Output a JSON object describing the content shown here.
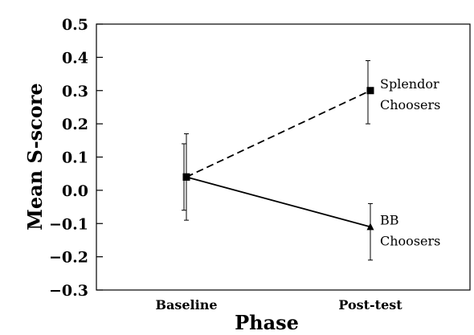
{
  "chart_data": {
    "type": "line",
    "categories": [
      "Baseline",
      "Post-test"
    ],
    "xlabel": "Phase",
    "ylabel": "Mean S-score",
    "ylim": [
      -0.3,
      0.5
    ],
    "yticks": [
      "0.5",
      "0.4",
      "0.3",
      "0.2",
      "0.1",
      "0.0",
      "−0.1",
      "−0.2",
      "−0.3"
    ],
    "grid": false,
    "series": [
      {
        "label_lines": [
          "Splendor",
          "Choosers"
        ],
        "line_style": "dashed",
        "marker": "square",
        "values": [
          0.04,
          0.3
        ],
        "err_low": [
          -0.06,
          0.2
        ],
        "err_high": [
          0.14,
          0.39
        ]
      },
      {
        "label_lines": [
          "BB",
          "Choosers"
        ],
        "line_style": "solid",
        "marker": "triangle",
        "values": [
          0.04,
          -0.11
        ],
        "err_low": [
          -0.09,
          -0.21
        ],
        "err_high": [
          0.17,
          -0.04
        ]
      }
    ],
    "colors": {
      "line": "#000000"
    }
  }
}
